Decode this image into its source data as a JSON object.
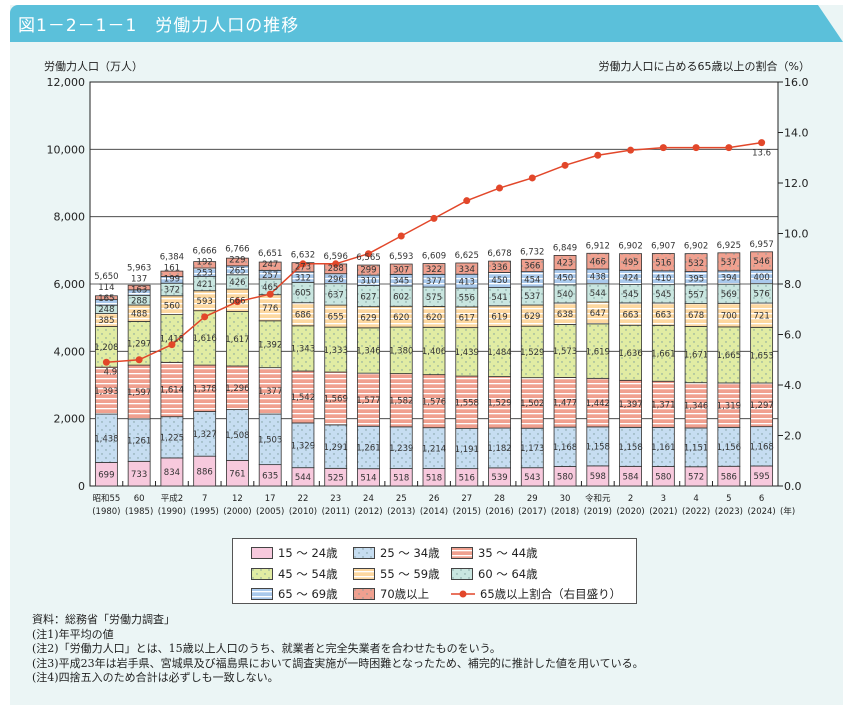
{
  "header": {
    "title": "図1－2－1－1　労働力人口の推移"
  },
  "chart_data": {
    "type": "bar",
    "stacked": true,
    "ylabel": "労働力人口（万人）",
    "y2label": "労働力人口に占める65歳以上の割合（%）",
    "ylim": [
      0,
      12000
    ],
    "y2lim": [
      0,
      16
    ],
    "yticks": [
      "0",
      "2,000",
      "4,000",
      "6,000",
      "8,000",
      "10,000",
      "12,000"
    ],
    "y2ticks": [
      "0.0",
      "2.0",
      "4.0",
      "6.0",
      "8.0",
      "10.0",
      "12.0",
      "14.0",
      "16.0"
    ],
    "categories": [
      "昭和55",
      "60",
      "平成2",
      "7",
      "12",
      "17",
      "22",
      "23",
      "24",
      "25",
      "26",
      "27",
      "28",
      "29",
      "30",
      "令和元",
      "2",
      "3",
      "4",
      "5",
      "6"
    ],
    "categories_west": [
      "(1980)",
      "(1985)",
      "(1990)",
      "(1995)",
      "(2000)",
      "(2005)",
      "(2010)",
      "(2011)",
      "(2012)",
      "(2013)",
      "(2014)",
      "(2015)",
      "(2016)",
      "(2017)",
      "(2018)",
      "(2019)",
      "(2020)",
      "(2021)",
      "(2022)",
      "(2023)",
      "(2024)"
    ],
    "x_unit": "(年)",
    "series": [
      {
        "name": "15 ～ 24歳",
        "color": "#f7c9dd",
        "pattern": "plain",
        "values": [
          699,
          733,
          834,
          886,
          761,
          635,
          544,
          525,
          514,
          518,
          518,
          516,
          539,
          543,
          580,
          598,
          584,
          580,
          572,
          586,
          595
        ]
      },
      {
        "name": "25 ～ 34歳",
        "color": "#c6ddf1",
        "pattern": "dots",
        "values": [
          1438,
          1261,
          1225,
          1327,
          1508,
          1503,
          1329,
          1291,
          1261,
          1239,
          1214,
          1191,
          1182,
          1173,
          1168,
          1158,
          1158,
          1161,
          1151,
          1156,
          1168
        ]
      },
      {
        "name": "35 ～ 44歳",
        "color": "#f0a08f",
        "pattern": "stripes",
        "values": [
          1393,
          1597,
          1614,
          1378,
          1296,
          1377,
          1542,
          1569,
          1577,
          1582,
          1576,
          1558,
          1529,
          1502,
          1477,
          1442,
          1397,
          1371,
          1346,
          1319,
          1297
        ]
      },
      {
        "name": "45 ～ 54歳",
        "color": "#e1eca3",
        "pattern": "dots",
        "values": [
          1208,
          1297,
          1418,
          1616,
          1617,
          1392,
          1343,
          1333,
          1346,
          1380,
          1406,
          1439,
          1484,
          1529,
          1573,
          1619,
          1636,
          1661,
          1671,
          1665,
          1653
        ]
      },
      {
        "name": "55 ～ 59歳",
        "color": "#fdd8a0",
        "pattern": "stripes",
        "values": [
          385,
          488,
          560,
          593,
          666,
          776,
          686,
          655,
          629,
          620,
          620,
          617,
          619,
          629,
          638,
          647,
          663,
          663,
          678,
          700,
          721
        ]
      },
      {
        "name": "60 ～ 64歳",
        "color": "#c9e6e0",
        "pattern": "dots",
        "values": [
          248,
          288,
          372,
          421,
          426,
          465,
          605,
          637,
          627,
          602,
          575,
          556,
          541,
          537,
          540,
          544,
          545,
          545,
          557,
          569,
          576
        ]
      },
      {
        "name": "65 ～ 69歳",
        "color": "#a9c9ec",
        "pattern": "stripes",
        "values": [
          165,
          163,
          199,
          253,
          265,
          257,
          312,
          296,
          310,
          345,
          377,
          413,
          450,
          454,
          450,
          438,
          424,
          410,
          395,
          394,
          400
        ]
      },
      {
        "name": "70歳以上",
        "color": "#f0a08f",
        "pattern": "dots",
        "values": [
          114,
          137,
          161,
          192,
          229,
          247,
          273,
          288,
          299,
          307,
          322,
          334,
          336,
          366,
          423,
          466,
          495,
          516,
          532,
          537,
          546
        ]
      }
    ],
    "totals": [
      "5,650",
      "5,963",
      "6,384",
      "6,666",
      "6,766",
      "6,651",
      "6,632",
      "6,596",
      "6,565",
      "6,593",
      "6,609",
      "6,625",
      "6,678",
      "6,732",
      "6,849",
      "6,912",
      "6,902",
      "6,907",
      "6,902",
      "6,925",
      "6,957"
    ],
    "line": {
      "name": "65歳以上割合（右目盛り）",
      "color": "#e2472a",
      "axis": "right",
      "values": [
        4.9,
        5.0,
        5.6,
        6.7,
        7.3,
        7.6,
        8.8,
        8.8,
        9.2,
        9.9,
        10.6,
        11.3,
        11.8,
        12.2,
        12.7,
        13.1,
        13.3,
        13.4,
        13.4,
        13.4,
        13.6
      ],
      "labels": {
        "0": "4.9",
        "20": "13.6"
      }
    },
    "legend_position": "bottom"
  },
  "notes": [
    "資料：総務省「労働力調査」",
    "(注1)年平均の値",
    "(注2)「労働力人口」とは、15歳以上人口のうち、就業者と完全失業者を合わせたものをいう。",
    "(注3)平成23年は岩手県、宮城県及び福島県において調査実施が一時困難となったため、補完的に推計した値を用いている。",
    "(注4)四捨五入のため合計は必ずしも一致しない。"
  ]
}
